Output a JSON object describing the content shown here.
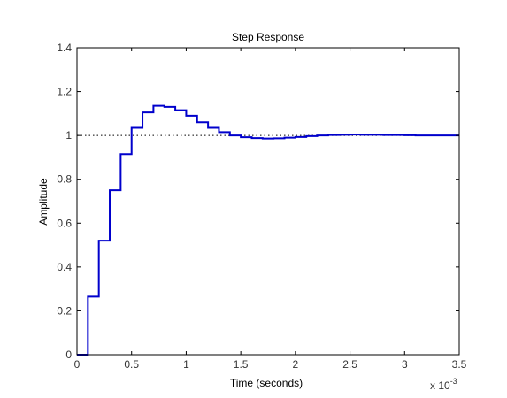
{
  "chart_data": {
    "type": "line",
    "title": "Step Response",
    "xlabel": "Time (seconds)",
    "ylabel": "Amplitude",
    "x_exponent_label": "x 10",
    "x_exponent_power": "-3",
    "xlim": [
      0,
      3.5
    ],
    "ylim": [
      0,
      1.4
    ],
    "xticks": [
      "0",
      "0.5",
      "1",
      "1.5",
      "2",
      "2.5",
      "3",
      "3.5"
    ],
    "yticks": [
      "0",
      "0.2",
      "0.4",
      "0.6",
      "0.8",
      "1",
      "1.2",
      "1.4"
    ],
    "grid": false,
    "reference_line_y": 1,
    "series": [
      {
        "step": true,
        "x": [
          0,
          0.1,
          0.2,
          0.3,
          0.4,
          0.5,
          0.6,
          0.7,
          0.8,
          0.9,
          1.0,
          1.1,
          1.2,
          1.3,
          1.4,
          1.5,
          1.6,
          1.7,
          1.8,
          1.9,
          2.0,
          2.1,
          2.2,
          2.3,
          2.4,
          2.5,
          2.6,
          2.7,
          2.8,
          2.9,
          3.0,
          3.1,
          3.2,
          3.3,
          3.4,
          3.5
        ],
        "y": [
          0,
          0.265,
          0.52,
          0.75,
          0.915,
          1.035,
          1.105,
          1.135,
          1.13,
          1.115,
          1.09,
          1.06,
          1.035,
          1.015,
          1.0,
          0.992,
          0.988,
          0.986,
          0.987,
          0.99,
          0.993,
          0.997,
          1.0,
          1.002,
          1.003,
          1.004,
          1.003,
          1.003,
          1.002,
          1.002,
          1.001,
          1.0,
          1.0,
          1.0,
          1.0,
          1.0
        ]
      }
    ],
    "colors": {
      "series": "#0000cc",
      "reference": "#000000",
      "axes": "#000000"
    }
  }
}
